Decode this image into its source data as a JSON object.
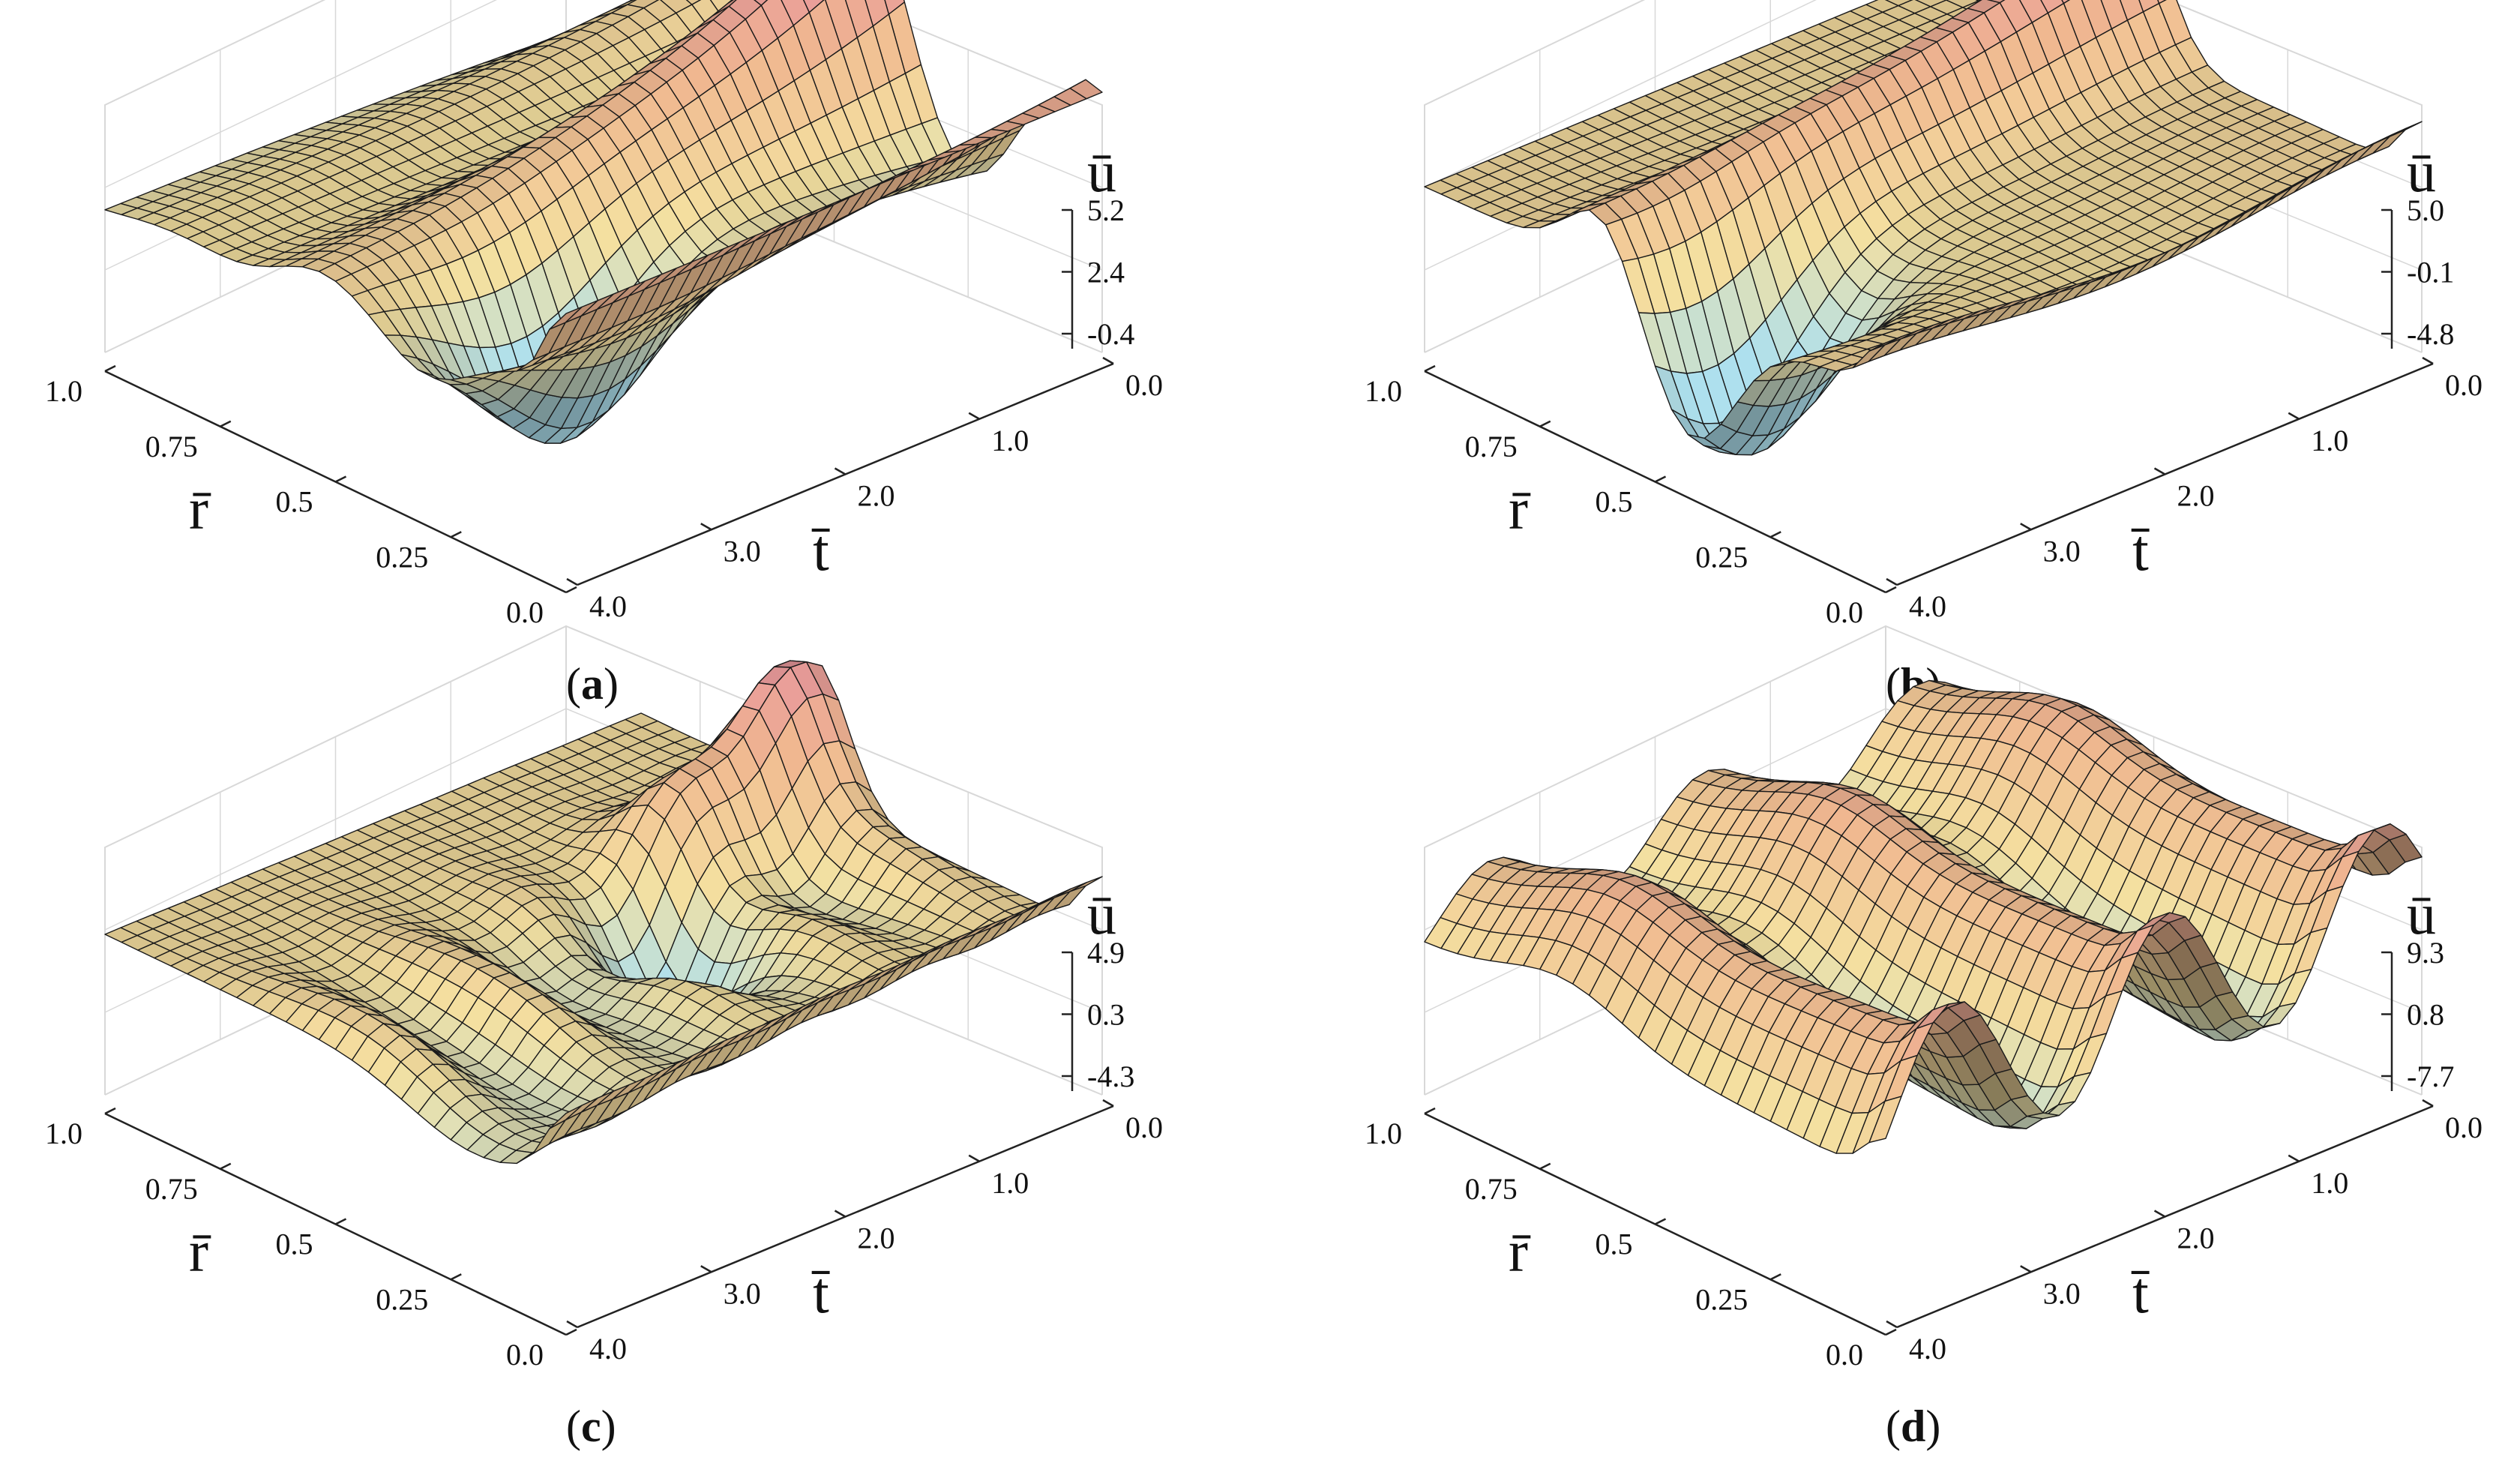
{
  "colors": {
    "mesh_line": "#1a1a1a",
    "box_line": "#d8d8d8",
    "axis_line": "#222222",
    "pink": "#e58aa0",
    "peach": "#f0b890",
    "yellow": "#f4e0a0",
    "cyan": "#aee0ee",
    "gray": "#7a7a7a"
  },
  "chart_data": [
    {
      "type": "surface",
      "caption": "a",
      "zlabel": "ū",
      "xlabel": "r̄",
      "ylabel": "t̄",
      "r_ticks": [
        "1.0",
        "0.75",
        "0.5",
        "0.25",
        "0.0"
      ],
      "t_ticks": [
        "0.0",
        "1.0",
        "2.0",
        "3.0",
        "4.0"
      ],
      "u_ticks": [
        "5.2",
        "2.4",
        "-0.4"
      ],
      "r_range": [
        0,
        1
      ],
      "t_range": [
        0,
        4
      ],
      "u_range": [
        -0.4,
        5.2
      ]
    },
    {
      "type": "surface",
      "caption": "b",
      "zlabel": "ū",
      "xlabel": "r̄",
      "ylabel": "t̄",
      "r_ticks": [
        "1.0",
        "0.75",
        "0.5",
        "0.25",
        "0.0"
      ],
      "t_ticks": [
        "0.0",
        "1.0",
        "2.0",
        "3.0",
        "4.0"
      ],
      "u_ticks": [
        "5.0",
        "-0.1",
        "-4.8"
      ],
      "r_range": [
        0,
        1
      ],
      "t_range": [
        0,
        4
      ],
      "u_range": [
        -4.8,
        5.0
      ]
    },
    {
      "type": "surface",
      "caption": "c",
      "zlabel": "ū",
      "xlabel": "r̄",
      "ylabel": "t̄",
      "r_ticks": [
        "1.0",
        "0.75",
        "0.5",
        "0.25",
        "0.0"
      ],
      "t_ticks": [
        "0.0",
        "1.0",
        "2.0",
        "3.0",
        "4.0"
      ],
      "u_ticks": [
        "4.9",
        "0.3",
        "-4.3"
      ],
      "r_range": [
        0,
        1
      ],
      "t_range": [
        0,
        4
      ],
      "u_range": [
        -4.3,
        4.9
      ]
    },
    {
      "type": "surface",
      "caption": "d",
      "zlabel": "ū",
      "xlabel": "r̄",
      "ylabel": "t̄",
      "r_ticks": [
        "1.0",
        "0.75",
        "0.5",
        "0.25",
        "0.0"
      ],
      "t_ticks": [
        "0.0",
        "1.0",
        "2.0",
        "3.0",
        "4.0"
      ],
      "u_ticks": [
        "9.3",
        "0.8",
        "-7.7"
      ],
      "r_range": [
        0,
        1
      ],
      "t_range": [
        0,
        4
      ],
      "u_range": [
        -7.7,
        9.3
      ]
    }
  ]
}
